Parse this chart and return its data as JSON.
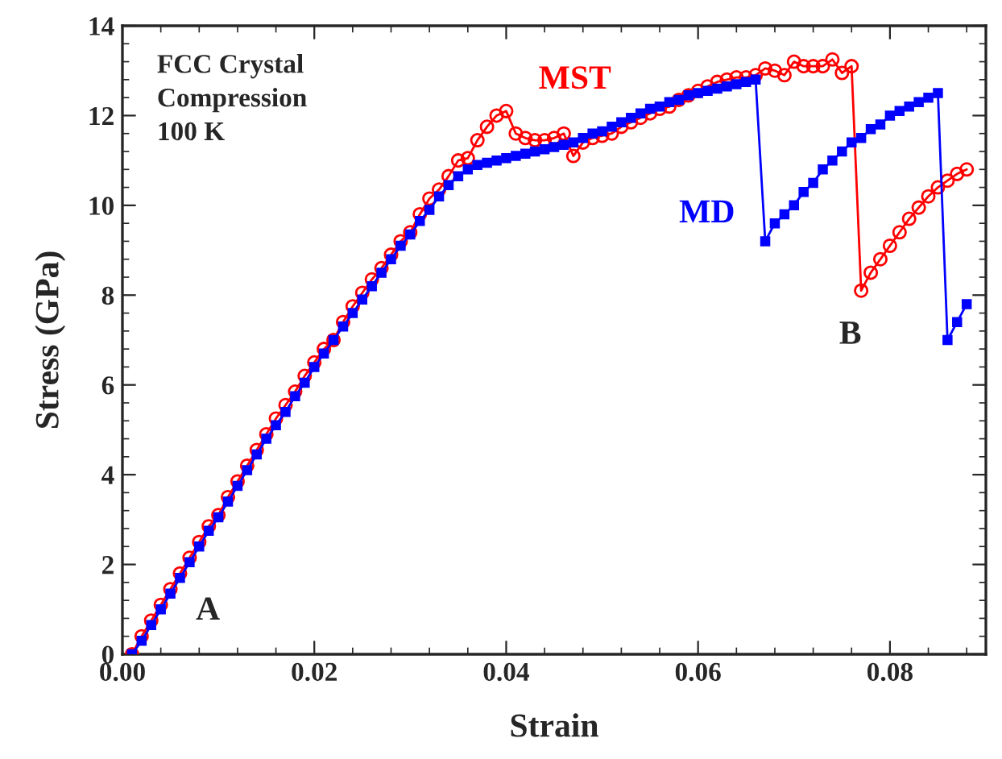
{
  "chart_data": {
    "type": "line",
    "xlabel": "Strain",
    "ylabel": "Stress (GPa)",
    "xlim": [
      0,
      0.09
    ],
    "xticks": [
      {
        "value": 0,
        "label": "0.00"
      },
      {
        "value": 0.02,
        "label": "0.02"
      },
      {
        "value": 0.04,
        "label": "0.04"
      },
      {
        "value": 0.06,
        "label": "0.06"
      },
      {
        "value": 0.08,
        "label": "0.08"
      }
    ],
    "ylim": [
      0,
      14
    ],
    "yticks": [
      0,
      2,
      4,
      6,
      8,
      10,
      12,
      14
    ],
    "grid": false,
    "legend": false,
    "x": [
      0.001,
      0.002,
      0.003,
      0.004,
      0.005,
      0.006,
      0.007,
      0.008,
      0.009,
      0.01,
      0.011,
      0.012,
      0.013,
      0.014,
      0.015,
      0.016,
      0.017,
      0.018,
      0.019,
      0.02,
      0.021,
      0.022,
      0.023,
      0.024,
      0.025,
      0.026,
      0.027,
      0.028,
      0.029,
      0.03,
      0.031,
      0.032,
      0.033,
      0.034,
      0.035,
      0.036,
      0.037,
      0.038,
      0.039,
      0.04,
      0.041,
      0.042,
      0.043,
      0.044,
      0.045,
      0.046,
      0.047,
      0.048,
      0.049,
      0.05,
      0.051,
      0.052,
      0.053,
      0.054,
      0.055,
      0.056,
      0.057,
      0.058,
      0.059,
      0.06,
      0.061,
      0.062,
      0.063,
      0.064,
      0.065,
      0.066,
      0.067,
      0.068,
      0.069,
      0.07,
      0.071,
      0.072,
      0.073,
      0.074,
      0.075,
      0.076,
      0.077,
      0.078,
      0.079,
      0.08,
      0.081,
      0.082,
      0.083,
      0.084,
      0.085,
      0.086,
      0.087,
      0.088
    ],
    "series": [
      {
        "name": "MST",
        "color": "#ff0000",
        "marker": "circle",
        "values": [
          0.0,
          0.4,
          0.75,
          1.1,
          1.45,
          1.8,
          2.15,
          2.5,
          2.85,
          3.1,
          3.5,
          3.85,
          4.2,
          4.55,
          4.9,
          5.25,
          5.55,
          5.85,
          6.2,
          6.5,
          6.8,
          7.0,
          7.4,
          7.75,
          8.05,
          8.35,
          8.6,
          8.9,
          9.2,
          9.4,
          9.8,
          10.15,
          10.35,
          10.65,
          11.0,
          11.05,
          11.45,
          11.75,
          12.0,
          12.1,
          11.6,
          11.5,
          11.45,
          11.45,
          11.5,
          11.6,
          11.1,
          11.4,
          11.5,
          11.55,
          11.6,
          11.75,
          11.85,
          11.95,
          12.05,
          12.15,
          12.2,
          12.35,
          12.45,
          12.55,
          12.65,
          12.75,
          12.8,
          12.85,
          12.85,
          12.9,
          13.05,
          13.0,
          12.9,
          13.2,
          13.1,
          13.1,
          13.1,
          13.25,
          12.95,
          13.1,
          8.1,
          8.5,
          8.8,
          9.1,
          9.4,
          9.7,
          9.95,
          10.2,
          10.4,
          10.55,
          10.7,
          10.8
        ]
      },
      {
        "name": "MD",
        "color": "#0000ff",
        "marker": "square",
        "values": [
          0.0,
          0.3,
          0.65,
          1.0,
          1.35,
          1.7,
          2.05,
          2.4,
          2.75,
          3.05,
          3.4,
          3.75,
          4.1,
          4.45,
          4.8,
          5.1,
          5.4,
          5.75,
          6.05,
          6.4,
          6.7,
          7.0,
          7.3,
          7.6,
          7.9,
          8.2,
          8.5,
          8.8,
          9.1,
          9.35,
          9.65,
          9.9,
          10.2,
          10.45,
          10.65,
          10.8,
          10.9,
          10.95,
          11.0,
          11.05,
          11.1,
          11.15,
          11.2,
          11.25,
          11.3,
          11.35,
          11.4,
          11.5,
          11.6,
          11.65,
          11.75,
          11.85,
          11.95,
          12.05,
          12.15,
          12.2,
          12.3,
          12.35,
          12.45,
          12.5,
          12.55,
          12.6,
          12.65,
          12.7,
          12.75,
          12.8,
          9.2,
          9.6,
          9.8,
          10.0,
          10.3,
          10.5,
          10.8,
          11.0,
          11.2,
          11.4,
          11.5,
          11.7,
          11.8,
          12.0,
          12.1,
          12.2,
          12.3,
          12.4,
          12.5,
          7.0,
          7.4,
          7.8
        ]
      }
    ],
    "annotations": [
      "FCC Crystal\nCompression\n100 K",
      "A",
      "B"
    ]
  }
}
